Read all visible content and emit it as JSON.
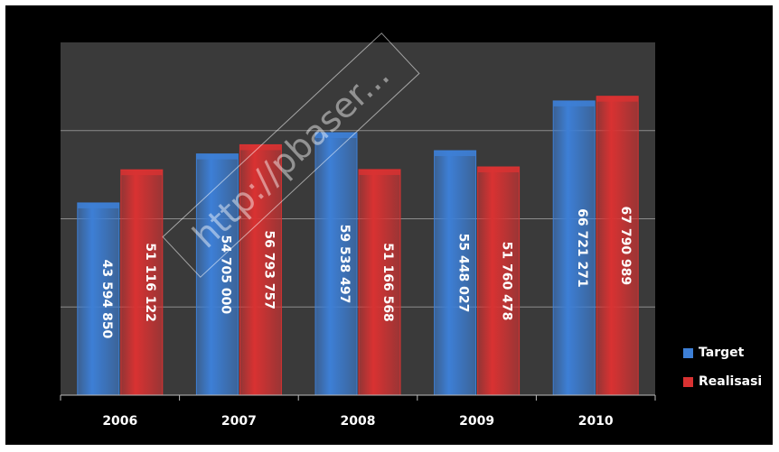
{
  "colors": {
    "background": "#000000",
    "plot_area": "#3a3a3a",
    "gridline": "#8c8c8c",
    "target": "#3d7fd6",
    "realisasi": "#d93232"
  },
  "chart_data": {
    "type": "bar",
    "categories": [
      "2006",
      "2007",
      "2008",
      "2009",
      "2010"
    ],
    "series": [
      {
        "name": "Target",
        "values": [
          43594850,
          54705000,
          59538497,
          55448027,
          66721271
        ],
        "labels": [
          "43 594 850",
          "54 705 000",
          "59 538 497",
          "55 448 027",
          "66 721 271"
        ]
      },
      {
        "name": "Realisasi",
        "values": [
          51116122,
          56793757,
          51166568,
          51760478,
          67790989
        ],
        "labels": [
          "51 116 122",
          "56 793 757",
          "51 166 568",
          "51 760 478",
          "67 790 989"
        ]
      }
    ],
    "ylim": [
      0,
      80000000
    ],
    "grid": true,
    "legend_position": "bottom-right"
  },
  "watermark": "http://pbaser..."
}
